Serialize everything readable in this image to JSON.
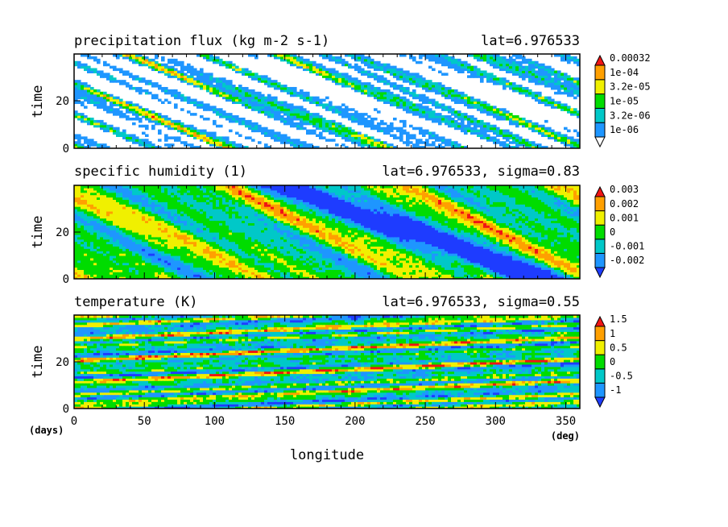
{
  "chart_data": [
    {
      "type": "heatmap",
      "title": "precipitation flux (kg m-2 s-1)",
      "subtitle": "lat=6.976533",
      "ylabel": "time",
      "xlim": [
        0,
        360
      ],
      "ylim": [
        0,
        40
      ],
      "yticks": [
        "0",
        "20"
      ],
      "colorbar": {
        "ticks": [
          "1e-06",
          "3.2e-06",
          "1e-05",
          "3.2e-05",
          "1e-04",
          "0.00032"
        ],
        "colors": [
          "#ffffff",
          "#1e96ff",
          "#00c8c8",
          "#00dc00",
          "#f0f000",
          "#ffa000",
          "#f01414"
        ]
      },
      "pattern": "sparse precipitation streaks sloping downward toward increasing longitude (westward propagation)"
    },
    {
      "type": "heatmap",
      "title": "specific humidity (1)",
      "subtitle": "lat=6.976533, sigma=0.83",
      "ylabel": "time",
      "xlim": [
        0,
        360
      ],
      "ylim": [
        0,
        40
      ],
      "yticks": [
        "0",
        "20"
      ],
      "colorbar": {
        "ticks": [
          "-0.002",
          "-0.001",
          "0",
          "0.001",
          "0.002",
          "0.003"
        ],
        "colors": [
          "#1e3cff",
          "#1e96ff",
          "#00c8c8",
          "#00dc00",
          "#f0f000",
          "#ffa000",
          "#f01414"
        ]
      },
      "pattern": "broad anomalies; a dry band slopes down from longitude ~150 at top to ~330 at bottom"
    },
    {
      "type": "heatmap",
      "title": "temperature (K)",
      "subtitle": "lat=6.976533, sigma=0.55",
      "ylabel": "time",
      "xlabel": "longitude",
      "xunit": "(deg)",
      "yunit": "(days)",
      "xlim": [
        0,
        360
      ],
      "ylim": [
        0,
        40
      ],
      "xticks": [
        "0",
        "50",
        "100",
        "150",
        "200",
        "250",
        "300",
        "350"
      ],
      "yticks": [
        "0",
        "20"
      ],
      "colorbar": {
        "ticks": [
          "-1",
          "-0.5",
          "0",
          "0.5",
          "1",
          "1.5"
        ],
        "colors": [
          "#1e3cff",
          "#1e96ff",
          "#00c8c8",
          "#00dc00",
          "#f0f000",
          "#ffa000",
          "#f01414"
        ]
      },
      "pattern": "narrow bands sloping upward toward increasing longitude (eastward propagation)"
    }
  ]
}
